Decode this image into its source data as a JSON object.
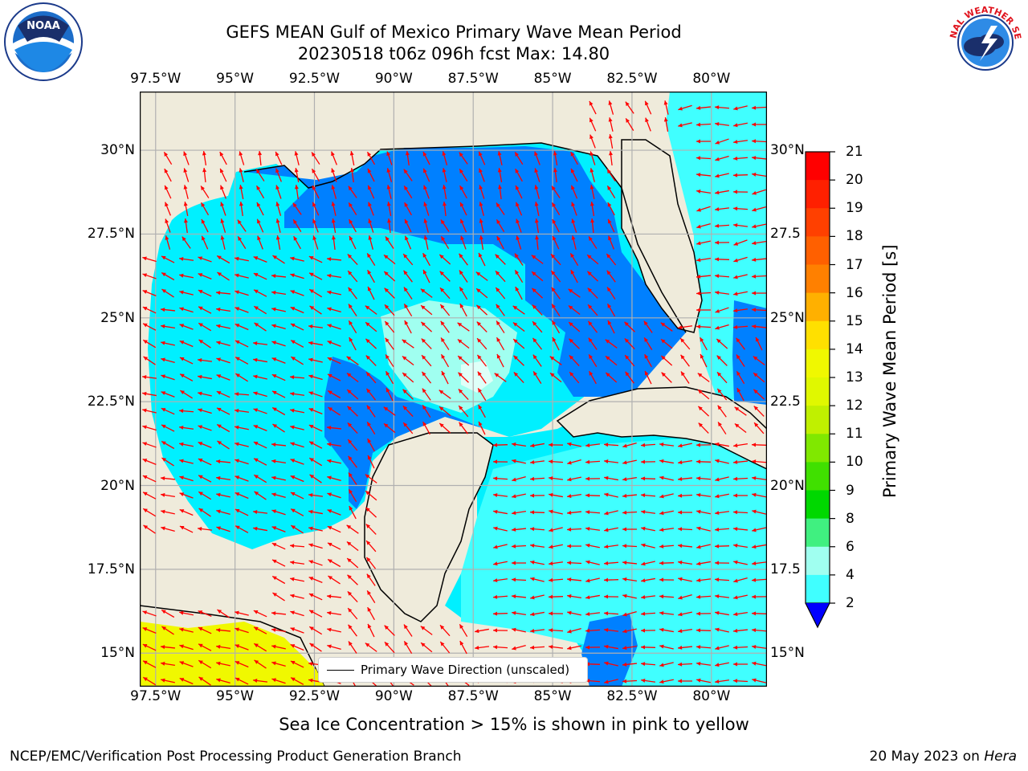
{
  "title": {
    "line1": "GEFS MEAN Gulf of Mexico Primary Wave Mean Period",
    "line2": "20230518 t06z 096h fcst   Max: 14.80"
  },
  "logos": {
    "left": "NOAA",
    "right": "NATIONAL WEATHER SERVICE"
  },
  "axes": {
    "lon_labels": [
      "97.5°W",
      "95°W",
      "92.5°W",
      "90°W",
      "87.5°W",
      "85°W",
      "82.5°W",
      "80°W"
    ],
    "lat_labels": [
      "30°N",
      "27.5°N",
      "25°N",
      "22.5°N",
      "20°N",
      "17.5°N",
      "15°N"
    ],
    "lat_labels_right": [
      "30°N",
      "27.5",
      "25°N",
      "22.5",
      "20°N",
      "17.5",
      "15°N"
    ],
    "lon_range": [
      -98,
      -78.25
    ],
    "lat_range": [
      14,
      31.75
    ]
  },
  "colorbar": {
    "title": "Primary Wave Mean Period [s]",
    "ticks": [
      "21",
      "20",
      "19",
      "18",
      "17",
      "16",
      "15",
      "14",
      "13",
      "12",
      "11",
      "10",
      "9",
      "8",
      "6",
      "4",
      "2"
    ],
    "colors": [
      "#ff0000",
      "#ff2000",
      "#ff4000",
      "#ff6000",
      "#ff8000",
      "#ffb000",
      "#ffe000",
      "#f0f800",
      "#e0f800",
      "#c0f000",
      "#80e800",
      "#40e000",
      "#00d800",
      "#40f080",
      "#a0fff0",
      "#40ffff",
      "#00f0ff",
      "#0080ff"
    ],
    "extend_color": "#0000ff"
  },
  "map": {
    "colors": {
      "land": "#efebdb",
      "dark_blue": "#0080ff",
      "cyan": "#00f0ff",
      "light_cyan": "#40ffff",
      "pale": "#a0fff0",
      "ice": "#f0f800",
      "arrow": "#ff0000",
      "grid": "#b0b0b0"
    }
  },
  "legend": {
    "label": "Primary Wave Direction (unscaled)"
  },
  "subtitle": "Sea Ice Concentration > 15% is shown in pink to yellow",
  "footer": {
    "left": "NCEP/EMC/Verification Post Processing Product Generation Branch",
    "right_date": "20 May 2023 on ",
    "right_host": "Hera"
  }
}
